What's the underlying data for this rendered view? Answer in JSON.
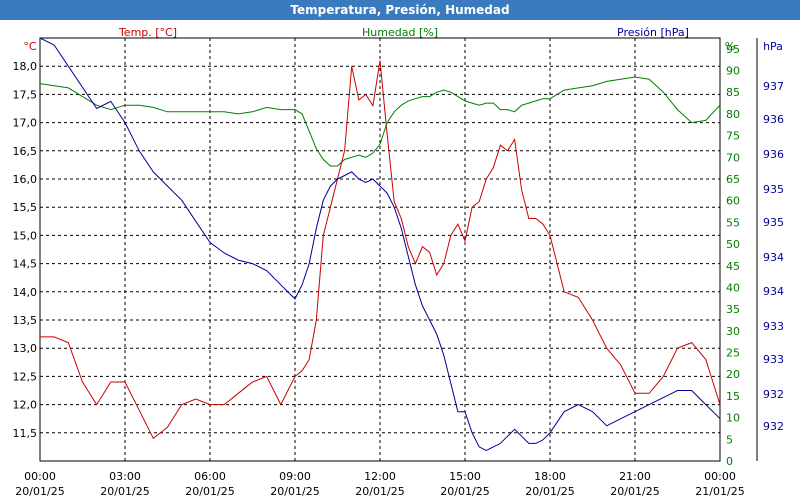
{
  "window": {
    "title": "Temperatura, Presión, Humedad"
  },
  "colors": {
    "temp": "#cc0000",
    "hum": "#008000",
    "pres": "#000099",
    "title_bg": "#3a7bc0"
  },
  "chart_data": {
    "type": "line",
    "grid": true,
    "x_ticks": [
      {
        "time": "00:00",
        "date": "20/01/25"
      },
      {
        "time": "03:00",
        "date": "20/01/25"
      },
      {
        "time": "06:00",
        "date": "20/01/25"
      },
      {
        "time": "09:00",
        "date": "20/01/25"
      },
      {
        "time": "12:00",
        "date": "20/01/25"
      },
      {
        "time": "15:00",
        "date": "20/01/25"
      },
      {
        "time": "18:00",
        "date": "20/01/25"
      },
      {
        "time": "21:00",
        "date": "20/01/25"
      },
      {
        "time": "00:00",
        "date": "21/01/25"
      }
    ],
    "axes": {
      "temp": {
        "label": "Temp. [°C]",
        "unit": "°C",
        "range": [
          11.0,
          18.5
        ],
        "ticks": [
          "11,5",
          "12,0",
          "12,5",
          "13,0",
          "13,5",
          "14,0",
          "14,5",
          "15,0",
          "15,5",
          "16,0",
          "16,5",
          "17,0",
          "17,5",
          "18,0"
        ]
      },
      "hum": {
        "label": "Humedad [%]",
        "unit": "%",
        "range": [
          0,
          97.5
        ],
        "ticks": [
          "0",
          "5",
          "10",
          "15",
          "20",
          "25",
          "30",
          "35",
          "40",
          "45",
          "50",
          "55",
          "60",
          "65",
          "70",
          "75",
          "80",
          "85",
          "90",
          "95"
        ]
      },
      "pres": {
        "label": "Presión [hPa]",
        "unit": "hPa",
        "range": [
          931.6,
          937.6
        ],
        "ticks": [
          "932",
          "932",
          "933",
          "933",
          "934",
          "934",
          "935",
          "935",
          "936",
          "936",
          "937"
        ]
      }
    },
    "series": [
      {
        "name": "Temp. [°C]",
        "axis": "temp",
        "x": [
          0,
          0.5,
          1,
          1.5,
          2,
          2.5,
          3,
          3.5,
          4,
          4.5,
          5,
          5.5,
          6,
          6.5,
          7,
          7.5,
          8,
          8.5,
          9,
          9.25,
          9.5,
          9.75,
          10,
          10.25,
          10.5,
          10.75,
          11,
          11.25,
          11.5,
          11.75,
          12,
          12.25,
          12.5,
          12.75,
          13,
          13.25,
          13.5,
          13.75,
          14,
          14.25,
          14.5,
          14.75,
          15,
          15.25,
          15.5,
          15.75,
          16,
          16.25,
          16.5,
          16.75,
          17,
          17.25,
          17.5,
          17.75,
          18,
          18.5,
          19,
          19.5,
          20,
          20.5,
          21,
          21.5,
          22,
          22.5,
          23,
          23.5,
          24
        ],
        "y": [
          13.2,
          13.2,
          13.1,
          12.4,
          12.0,
          12.4,
          12.4,
          11.9,
          11.4,
          11.6,
          12.0,
          12.1,
          12.0,
          12.0,
          12.2,
          12.4,
          12.5,
          12.0,
          12.5,
          12.6,
          12.8,
          13.5,
          15.0,
          15.5,
          16.0,
          16.5,
          18.0,
          17.4,
          17.5,
          17.3,
          18.1,
          16.8,
          15.6,
          15.3,
          14.8,
          14.5,
          14.8,
          14.7,
          14.3,
          14.5,
          15.0,
          15.2,
          14.9,
          15.5,
          15.6,
          16.0,
          16.2,
          16.6,
          16.5,
          16.7,
          15.8,
          15.3,
          15.3,
          15.2,
          15.0,
          14.0,
          13.9,
          13.5,
          13.0,
          12.7,
          12.2,
          12.2,
          12.5,
          13.0,
          13.1,
          12.8,
          12.0
        ]
      },
      {
        "name": "Humedad [%]",
        "axis": "hum",
        "x": [
          0,
          0.5,
          1,
          1.5,
          2,
          2.5,
          3,
          3.5,
          4,
          4.5,
          5,
          5.5,
          6,
          6.5,
          7,
          7.5,
          8,
          8.5,
          9,
          9.25,
          9.5,
          9.75,
          10,
          10.25,
          10.5,
          10.75,
          11,
          11.25,
          11.5,
          11.75,
          12,
          12.25,
          12.5,
          12.75,
          13,
          13.25,
          13.5,
          13.75,
          14,
          14.25,
          14.5,
          14.75,
          15,
          15.25,
          15.5,
          15.75,
          16,
          16.25,
          16.5,
          16.75,
          17,
          17.25,
          17.5,
          17.75,
          18,
          18.5,
          19,
          19.5,
          20,
          20.5,
          21,
          21.5,
          22,
          22.5,
          23,
          23.5,
          24
        ],
        "y": [
          87,
          86.5,
          86,
          84,
          82,
          81,
          82,
          82,
          81.5,
          80.5,
          80.5,
          80.5,
          80.5,
          80.5,
          80,
          80.5,
          81.5,
          81,
          81,
          80,
          76,
          72,
          69.5,
          68,
          68,
          69.5,
          70,
          70.5,
          70,
          71,
          73,
          78,
          80.5,
          82,
          83,
          83.5,
          84,
          84,
          85,
          85.5,
          85,
          84,
          83,
          82.5,
          82,
          82.5,
          82.5,
          81,
          81,
          80.5,
          82,
          82.5,
          83,
          83.5,
          83.5,
          85.5,
          86,
          86.5,
          87.5,
          88,
          88.5,
          88,
          85,
          81,
          78,
          78.5,
          82
        ]
      },
      {
        "name": "Presión [hPa]",
        "axis": "pres",
        "x": [
          0,
          0.5,
          1,
          1.5,
          2,
          2.5,
          3,
          3.5,
          4,
          4.5,
          5,
          5.5,
          6,
          6.5,
          7,
          7.5,
          8,
          8.5,
          9,
          9.25,
          9.5,
          9.75,
          10,
          10.25,
          10.5,
          10.75,
          11,
          11.25,
          11.5,
          11.75,
          12,
          12.25,
          12.5,
          12.75,
          13,
          13.25,
          13.5,
          13.75,
          14,
          14.25,
          14.5,
          14.75,
          15,
          15.25,
          15.5,
          15.75,
          16,
          16.25,
          16.5,
          16.75,
          17,
          17.25,
          17.5,
          17.75,
          18,
          18.5,
          19,
          19.5,
          20,
          20.5,
          21,
          21.5,
          22,
          22.5,
          23,
          23.5,
          24
        ],
        "y": [
          937.6,
          937.5,
          937.2,
          936.9,
          936.6,
          936.7,
          936.4,
          936.0,
          935.7,
          935.5,
          935.3,
          935.0,
          934.7,
          934.55,
          934.45,
          934.4,
          934.3,
          934.1,
          933.9,
          934.1,
          934.4,
          934.9,
          935.3,
          935.5,
          935.6,
          935.65,
          935.7,
          935.6,
          935.55,
          935.6,
          935.5,
          935.4,
          935.2,
          934.9,
          934.5,
          934.1,
          933.8,
          933.6,
          933.4,
          933.1,
          932.7,
          932.3,
          932.3,
          932.0,
          931.8,
          931.75,
          931.8,
          931.85,
          931.95,
          932.05,
          931.95,
          931.85,
          931.85,
          931.9,
          932.0,
          932.3,
          932.4,
          932.3,
          932.1,
          932.2,
          932.3,
          932.4,
          932.5,
          932.6,
          932.6,
          932.4,
          932.2
        ]
      }
    ]
  }
}
